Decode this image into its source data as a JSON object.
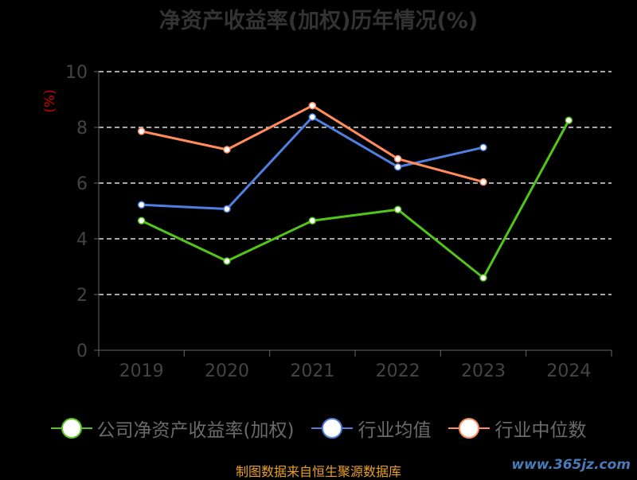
{
  "title": "净资产收益率(加权)历年情况(%)",
  "source": "制图数据来自恒生聚源数据库",
  "watermark": "www.365jz.com",
  "chart_data": {
    "type": "line",
    "title": "净资产收益率(加权)历年情况(%)",
    "ylabel": "(%)",
    "xlabel": "",
    "ylim": [
      0,
      10
    ],
    "yticks": [
      "0",
      "2",
      "4",
      "6",
      "8",
      "10"
    ],
    "categories": [
      "2019",
      "2020",
      "2021",
      "2022",
      "2023",
      "2024"
    ],
    "grid": true,
    "legend_position": "bottom",
    "series": [
      {
        "name": "公司净资产收益率(加权)",
        "color": "#52c41a",
        "values": [
          4.65,
          3.2,
          4.65,
          5.05,
          2.6,
          8.25
        ]
      },
      {
        "name": "行业均值",
        "color": "#4f7fdf",
        "values": [
          5.22,
          5.07,
          8.37,
          6.58,
          7.28,
          null
        ]
      },
      {
        "name": "行业中位数",
        "color": "#ff8c5a",
        "values": [
          7.86,
          7.2,
          8.78,
          6.87,
          6.04,
          null
        ]
      }
    ]
  }
}
